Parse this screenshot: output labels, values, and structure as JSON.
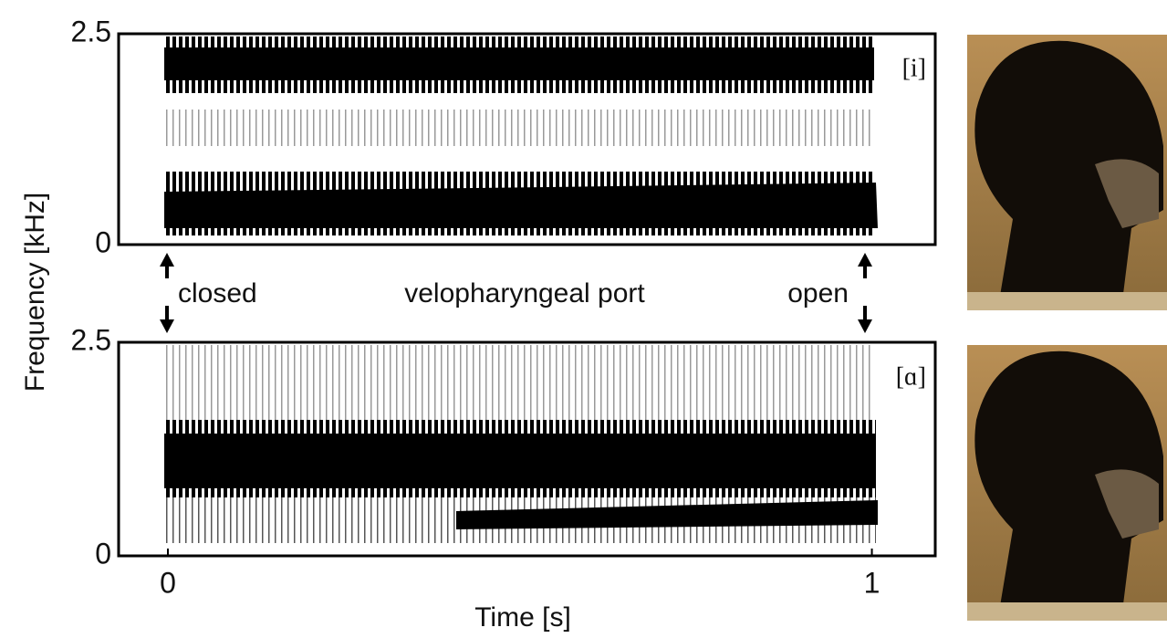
{
  "chart_data": [
    {
      "type": "spectrogram",
      "label": "[i]",
      "ylabel": "Frequency [kHz]",
      "ylim": [
        0,
        2.5
      ],
      "yticks": [
        0,
        2.5
      ],
      "xlim": [
        -0.07,
        1.09
      ],
      "annotations": [
        "closed",
        "velopharyngeal port",
        "open"
      ]
    },
    {
      "type": "spectrogram",
      "label": "[ɑ]",
      "xlabel": "Time [s]",
      "ylim": [
        0,
        2.5
      ],
      "yticks": [
        0,
        2.5
      ],
      "xlim": [
        -0.07,
        1.09
      ],
      "xticks": [
        0,
        1
      ]
    }
  ]
}
